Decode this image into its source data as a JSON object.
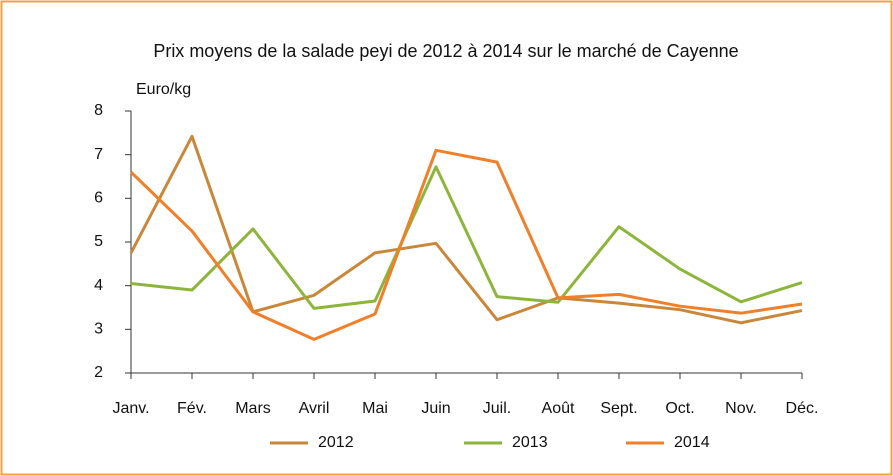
{
  "chart_data": {
    "type": "line",
    "title": "Prix moyens de la salade peyi de 2012 à 2014 sur le marché de Cayenne",
    "y_label": "Euro/kg",
    "categories": [
      "Janv.",
      "Fév.",
      "Mars",
      "Avril",
      "Mai",
      "Juin",
      "Juil.",
      "Août",
      "Sept.",
      "Oct.",
      "Nov.",
      "Déc."
    ],
    "series": [
      {
        "name": "2012",
        "color": "#c8873a",
        "values": [
          4.75,
          7.42,
          3.4,
          3.78,
          4.75,
          4.97,
          3.22,
          3.72,
          3.6,
          3.45,
          3.15,
          3.43
        ]
      },
      {
        "name": "2013",
        "color": "#8db53c",
        "values": [
          4.05,
          3.9,
          5.3,
          3.48,
          3.65,
          6.72,
          3.75,
          3.62,
          5.35,
          4.38,
          3.63,
          4.07
        ]
      },
      {
        "name": "2014",
        "color": "#f07f2a",
        "values": [
          6.6,
          5.25,
          3.4,
          2.77,
          3.35,
          7.1,
          6.83,
          3.72,
          3.8,
          3.53,
          3.37,
          3.58
        ]
      }
    ],
    "ylim": [
      2,
      8
    ],
    "yticks": [
      2,
      3,
      4,
      5,
      6,
      7,
      8
    ],
    "grid": false
  }
}
